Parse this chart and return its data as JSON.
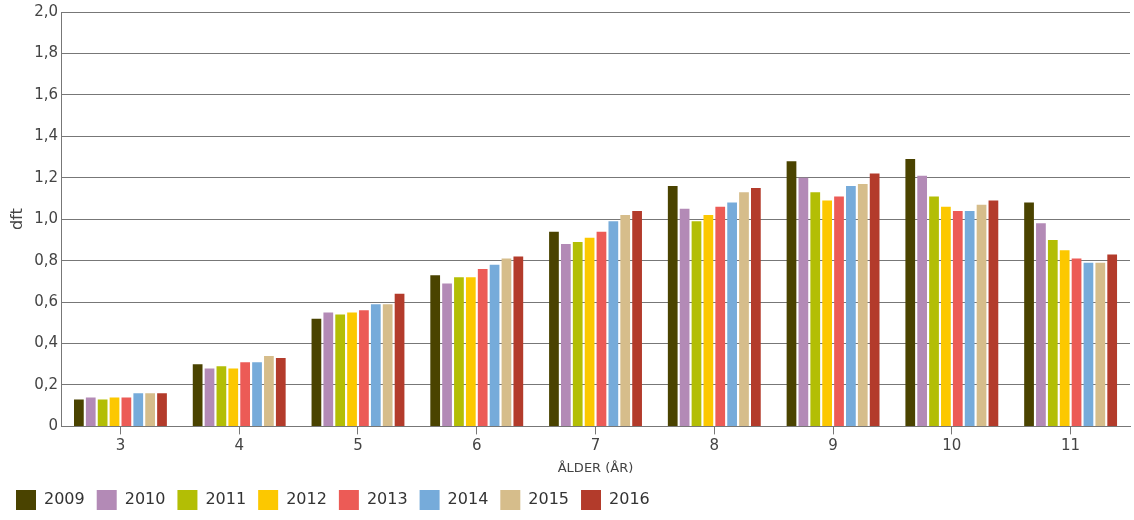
{
  "chart_data": {
    "type": "bar",
    "xlabel": "ÅLDER (ÅR)",
    "ylabel": "dft",
    "categories": [
      "3",
      "4",
      "5",
      "6",
      "7",
      "8",
      "9",
      "10",
      "11"
    ],
    "series": [
      {
        "name": "2009",
        "color": "#4a4300",
        "values": [
          0.13,
          0.3,
          0.52,
          0.73,
          0.94,
          1.16,
          1.28,
          1.29,
          1.08
        ]
      },
      {
        "name": "2010",
        "color": "#b38ab6",
        "values": [
          0.14,
          0.28,
          0.55,
          0.69,
          0.88,
          1.05,
          1.2,
          1.21,
          0.98
        ]
      },
      {
        "name": "2011",
        "color": "#b3be05",
        "values": [
          0.13,
          0.29,
          0.54,
          0.72,
          0.89,
          0.99,
          1.13,
          1.11,
          0.9
        ]
      },
      {
        "name": "2012",
        "color": "#fcc800",
        "values": [
          0.14,
          0.28,
          0.55,
          0.72,
          0.91,
          1.02,
          1.09,
          1.06,
          0.85
        ]
      },
      {
        "name": "2013",
        "color": "#ec5b56",
        "values": [
          0.14,
          0.31,
          0.56,
          0.76,
          0.94,
          1.06,
          1.11,
          1.04,
          0.81
        ]
      },
      {
        "name": "2014",
        "color": "#76abda",
        "values": [
          0.16,
          0.31,
          0.59,
          0.78,
          0.99,
          1.08,
          1.16,
          1.04,
          0.79
        ]
      },
      {
        "name": "2015",
        "color": "#d6bd8b",
        "values": [
          0.16,
          0.34,
          0.59,
          0.81,
          1.02,
          1.13,
          1.17,
          1.07,
          0.79
        ]
      },
      {
        "name": "2016",
        "color": "#b33b2b",
        "values": [
          0.16,
          0.33,
          0.64,
          0.82,
          1.04,
          1.15,
          1.22,
          1.09,
          0.83
        ]
      }
    ],
    "ylim": [
      0,
      2
    ],
    "yticks": [
      0,
      {
        "value": 0.2,
        "label": "0,2"
      },
      {
        "value": 0.4,
        "label": "0,4"
      },
      {
        "value": 0.6,
        "label": "0,6"
      },
      {
        "value": 0.8,
        "label": "0,8"
      },
      {
        "value": 1.0,
        "label": "1,0"
      },
      {
        "value": 1.2,
        "label": "1,2"
      },
      {
        "value": 1.4,
        "label": "1,4"
      },
      {
        "value": 1.6,
        "label": "1,6"
      },
      {
        "value": 1.8,
        "label": "1,8"
      },
      {
        "value": 2.0,
        "label": "2,0"
      }
    ],
    "grid": "y",
    "legend": "bottom left"
  }
}
